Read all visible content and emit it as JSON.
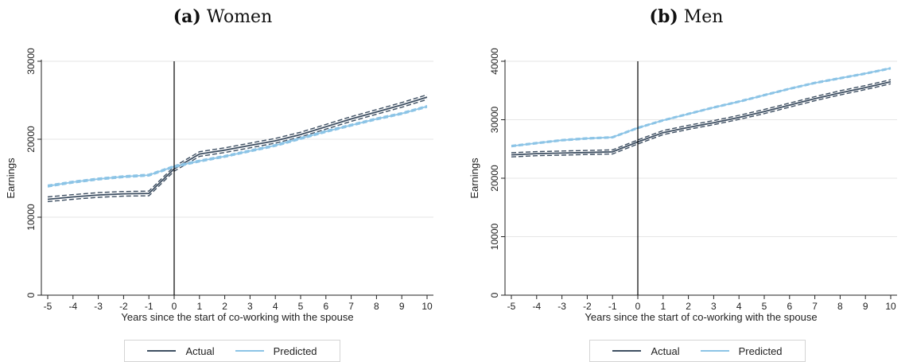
{
  "chart_data": [
    {
      "type": "line",
      "panel_label": "(a)",
      "title": "Women",
      "xlabel": "Years since the start of co-working with the spouse",
      "ylabel": "Earnings",
      "x": [
        -5,
        -4,
        -3,
        -2,
        -1,
        0,
        1,
        2,
        3,
        4,
        5,
        6,
        7,
        8,
        9,
        10
      ],
      "xlim": [
        -5,
        10
      ],
      "ylim": [
        0,
        30000
      ],
      "yticks": [
        0,
        10000,
        20000,
        30000
      ],
      "grid": true,
      "vline_x": 0,
      "legend": "bottom",
      "series": [
        {
          "name": "Actual",
          "color": "#3e4f62",
          "values": [
            12300,
            12600,
            12850,
            13000,
            13050,
            16200,
            18100,
            18600,
            19200,
            19800,
            20600,
            21600,
            22600,
            23500,
            24400,
            25400
          ],
          "ci_halfwidth": 300
        },
        {
          "name": "Predicted",
          "color": "#8cc4e6",
          "values": [
            14000,
            14500,
            14900,
            15200,
            15400,
            16500,
            17200,
            17800,
            18500,
            19200,
            20100,
            21000,
            21800,
            22600,
            23300,
            24200
          ],
          "ci_halfwidth": 120
        }
      ]
    },
    {
      "type": "line",
      "panel_label": "(b)",
      "title": "Men",
      "xlabel": "Years since the start of co-working with the spouse",
      "ylabel": "Earnings",
      "x": [
        -5,
        -4,
        -3,
        -2,
        -1,
        0,
        1,
        2,
        3,
        4,
        5,
        6,
        7,
        8,
        9,
        10
      ],
      "xlim": [
        -5,
        10
      ],
      "ylim": [
        0,
        40000
      ],
      "yticks": [
        0,
        10000,
        20000,
        30000,
        40000
      ],
      "grid": true,
      "vline_x": 0,
      "legend": "bottom",
      "series": [
        {
          "name": "Actual",
          "color": "#3e4f62",
          "values": [
            24000,
            24200,
            24300,
            24400,
            24500,
            26200,
            27800,
            28700,
            29500,
            30400,
            31400,
            32500,
            33600,
            34600,
            35500,
            36500
          ],
          "ci_halfwidth": 350
        },
        {
          "name": "Predicted",
          "color": "#8cc4e6",
          "values": [
            25500,
            26000,
            26500,
            26800,
            27000,
            28600,
            29900,
            31000,
            32100,
            33100,
            34200,
            35300,
            36300,
            37100,
            37900,
            38800
          ],
          "ci_halfwidth": 120
        }
      ]
    }
  ]
}
